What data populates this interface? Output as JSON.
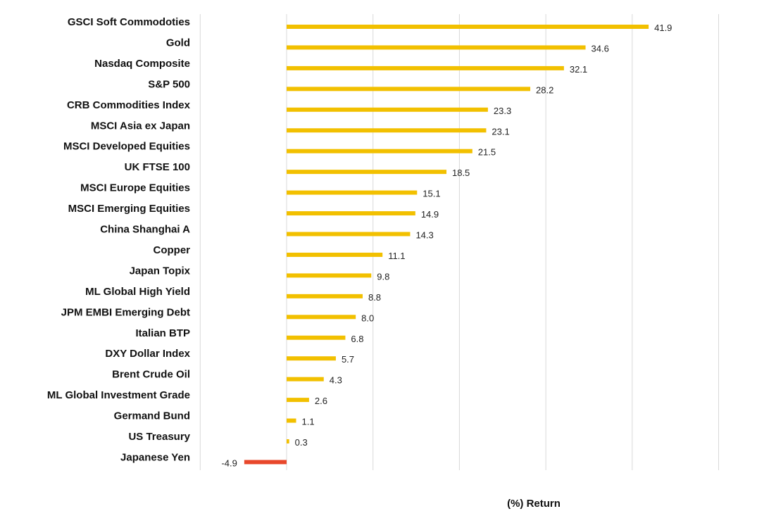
{
  "chart_data": {
    "type": "bar",
    "orientation": "horizontal",
    "xlabel": "(%) Return",
    "xlim": [
      -10,
      50
    ],
    "grid": true,
    "colors": {
      "positive": "#f2c000",
      "negative": "#e8472b",
      "grid": "#d9d9d9"
    },
    "categories": [
      "GSCI Soft Commodoties",
      "Gold",
      "Nasdaq Composite",
      "S&P 500",
      "CRB Commodities Index",
      "MSCI Asia ex Japan",
      "MSCI Developed Equities",
      "UK FTSE 100",
      "MSCI Europe Equities",
      "MSCI Emerging  Equities",
      "China Shanghai A",
      "Copper",
      "Japan Topix",
      "ML Global High Yield",
      "JPM EMBI Emerging Debt",
      "Italian BTP",
      "DXY Dollar Index",
      "Brent Crude Oil",
      "ML Global Investment Grade",
      "Germand Bund",
      "US Treasury",
      "Japanese Yen"
    ],
    "values": [
      41.9,
      34.6,
      32.1,
      28.2,
      23.3,
      23.1,
      21.5,
      18.5,
      15.1,
      14.9,
      14.3,
      11.1,
      9.8,
      8.8,
      8.0,
      6.8,
      5.7,
      4.3,
      2.6,
      1.1,
      0.3,
      -4.9
    ],
    "value_labels": [
      "41.9",
      "34.6",
      "32.1",
      "28.2",
      "23.3",
      "23.1",
      "21.5",
      "18.5",
      "15.1",
      "14.9",
      "14.3",
      "11.1",
      "9.8",
      "8.8",
      "8.0",
      "6.8",
      "5.7",
      "4.3",
      "2.6",
      "1.1",
      "0.3",
      "-4.9"
    ]
  }
}
